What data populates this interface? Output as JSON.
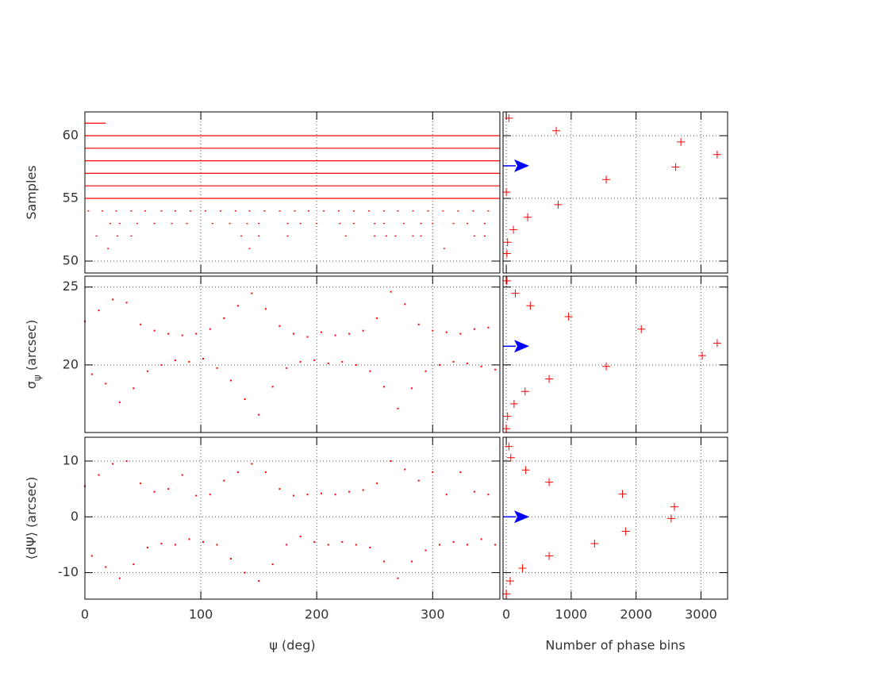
{
  "chart_data": [
    {
      "type": "scatter",
      "ylabel": [
        "Samples"
      ],
      "color": "#ff0000",
      "grid": true,
      "ylim": [
        49.05,
        61.9
      ],
      "yticks": [
        50,
        55,
        60
      ],
      "series": [
        {
          "y": 61,
          "x_ranges": [
            [
              0,
              18
            ]
          ]
        },
        {
          "y": 60,
          "x_ranges": [
            [
              0,
              358
            ]
          ]
        },
        {
          "y": 59,
          "x_ranges": [
            [
              0,
              358
            ]
          ]
        },
        {
          "y": 58,
          "x_ranges": [
            [
              0,
              358
            ]
          ]
        },
        {
          "y": 57,
          "x_ranges": [
            [
              0,
              358
            ]
          ]
        },
        {
          "y": 56,
          "x_ranges": [
            [
              0,
              358
            ]
          ]
        },
        {
          "y": 55,
          "x_ranges": [
            [
              0,
              358
            ]
          ]
        },
        {
          "y": 54,
          "x": [
            3,
            15,
            27,
            40,
            52,
            66,
            78,
            91,
            104,
            117,
            130,
            142,
            155,
            168,
            181,
            193,
            206,
            219,
            232,
            245,
            258,
            270,
            283,
            296,
            309,
            322,
            335,
            348
          ]
        },
        {
          "y": 53,
          "x": [
            22,
            30,
            45,
            60,
            75,
            88,
            110,
            125,
            140,
            150,
            175,
            186,
            200,
            220,
            232,
            250,
            258,
            275,
            290,
            300,
            318,
            330,
            345
          ]
        },
        {
          "y": 52,
          "x": [
            10,
            28,
            40,
            135,
            150,
            175,
            225,
            250,
            260,
            268,
            283,
            290,
            336,
            345
          ]
        },
        {
          "y": 51,
          "x": [
            20,
            142,
            310
          ]
        }
      ]
    },
    {
      "type": "scatter",
      "marker": "cross",
      "color": "#ff0000",
      "grid": true,
      "x": [
        40,
        770,
        2690,
        3250,
        2610,
        1540,
        0,
        800,
        330,
        110,
        20,
        10
      ],
      "y": [
        61.4,
        60.4,
        59.5,
        58.5,
        57.5,
        56.5,
        55.5,
        54.5,
        53.5,
        52.5,
        51.5,
        50.6
      ],
      "reference_arrow": {
        "value": 57.6,
        "color": "#0000ff"
      }
    },
    {
      "type": "scatter",
      "ylabel": [
        "σ",
        "ψ",
        " (arcsec)"
      ],
      "color": "#ff0000",
      "grid": true,
      "ylim": [
        15.66,
        25.7
      ],
      "yticks": [
        20,
        25
      ],
      "x": [
        0,
        6,
        12,
        18,
        24,
        30,
        36,
        42,
        48,
        54,
        60,
        66,
        72,
        78,
        84,
        90,
        96,
        102,
        108,
        114,
        120,
        126,
        132,
        138,
        144,
        150,
        156,
        162,
        168,
        174,
        180,
        186,
        192,
        198,
        204,
        210,
        216,
        222,
        228,
        234,
        240,
        246,
        252,
        258,
        264,
        270,
        276,
        282,
        288,
        294,
        300,
        306,
        312,
        318,
        324,
        330,
        336,
        342,
        348,
        354
      ],
      "y": [
        22.8,
        19.4,
        23.5,
        18.8,
        24.2,
        17.6,
        24.0,
        18.5,
        22.6,
        19.6,
        22.2,
        20.0,
        22.0,
        20.3,
        21.9,
        20.2,
        22.0,
        20.4,
        22.3,
        19.8,
        23.0,
        19.0,
        23.8,
        17.8,
        24.6,
        16.8,
        23.6,
        18.6,
        22.5,
        19.8,
        22.0,
        20.2,
        21.8,
        20.3,
        22.1,
        20.1,
        21.9,
        20.2,
        22.0,
        20.0,
        22.2,
        19.6,
        23.0,
        18.6,
        24.7,
        17.2,
        23.9,
        18.5,
        22.6,
        19.6,
        22.2,
        20.0,
        22.1,
        20.2,
        22.0,
        20.1,
        22.3,
        19.9,
        22.4,
        19.7
      ]
    },
    {
      "type": "scatter",
      "marker": "cross",
      "color": "#ff0000",
      "grid": true,
      "x": [
        10,
        140,
        370,
        960,
        2080,
        3250,
        3020,
        1540,
        660,
        290,
        120,
        20,
        0
      ],
      "y": [
        25.4,
        24.6,
        23.8,
        23.1,
        22.3,
        21.4,
        20.6,
        19.9,
        19.1,
        18.3,
        17.5,
        16.7,
        15.9
      ],
      "reference_arrow": {
        "value": 21.2,
        "color": "#0000ff"
      }
    },
    {
      "type": "scatter",
      "ylabel": [
        "⟨dΨ⟩ (arcsec)"
      ],
      "xlabel": "ψ (deg)",
      "color": "#ff0000",
      "grid": true,
      "xlim": [
        0,
        358
      ],
      "xticks": [
        0,
        100,
        200,
        300
      ],
      "ylim": [
        -14.75,
        14.26
      ],
      "yticks": [
        -10,
        0,
        10
      ],
      "x": [
        0,
        6,
        12,
        18,
        24,
        30,
        36,
        42,
        48,
        54,
        60,
        66,
        72,
        78,
        84,
        90,
        96,
        102,
        108,
        114,
        120,
        126,
        132,
        138,
        144,
        150,
        156,
        162,
        168,
        174,
        180,
        186,
        192,
        198,
        204,
        210,
        216,
        222,
        228,
        234,
        240,
        246,
        252,
        258,
        264,
        270,
        276,
        282,
        288,
        294,
        300,
        306,
        312,
        318,
        324,
        330,
        336,
        342,
        348,
        354
      ],
      "y": [
        5.5,
        -7.0,
        7.5,
        -9.0,
        9.5,
        -11.0,
        10.0,
        -8.5,
        6.0,
        -5.5,
        4.5,
        -4.8,
        5.0,
        -5.0,
        7.5,
        -4.0,
        3.8,
        -4.5,
        4.0,
        -5.0,
        6.5,
        -7.5,
        8.0,
        -10.0,
        9.5,
        -11.5,
        8.0,
        -8.5,
        5.0,
        -5.0,
        3.8,
        -3.5,
        4.0,
        -4.5,
        4.2,
        -5.0,
        4.0,
        -4.5,
        4.5,
        -5.0,
        4.8,
        -5.5,
        6.0,
        -8.0,
        10.0,
        -11.0,
        8.5,
        -8.0,
        6.5,
        -6.0,
        8.0,
        -5.0,
        4.0,
        -4.5,
        8.0,
        -5.0,
        4.5,
        -4.0,
        4.0,
        -5.0
      ]
    },
    {
      "type": "scatter",
      "marker": "cross",
      "xlabel": "Number of phase bins",
      "color": "#ff0000",
      "grid": true,
      "xlim": [
        -50,
        3410
      ],
      "xticks": [
        0,
        1000,
        2000,
        3000
      ],
      "x": [
        40,
        70,
        300,
        660,
        1790,
        2590,
        2540,
        1840,
        1360,
        660,
        250,
        60,
        0
      ],
      "y": [
        12.6,
        10.6,
        8.4,
        6.2,
        4.1,
        1.8,
        -0.3,
        -2.6,
        -4.8,
        -7.0,
        -9.2,
        -11.5,
        -13.8
      ],
      "reference_arrow": {
        "value": 0,
        "color": "#0000ff"
      }
    }
  ]
}
